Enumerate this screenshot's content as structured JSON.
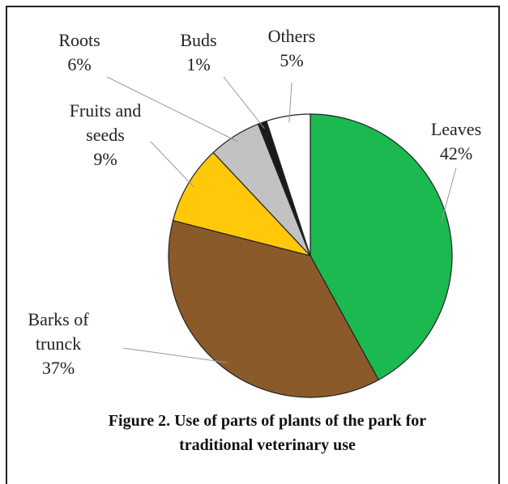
{
  "chart_data": {
    "type": "pie",
    "categories": [
      "Leaves",
      "Barks of trunck",
      "Fruits and seeds",
      "Roots",
      "Buds",
      "Others"
    ],
    "values": [
      42,
      37,
      9,
      6,
      1,
      5
    ],
    "value_labels": [
      "42%",
      "37%",
      "9%",
      "6%",
      "1%",
      "5%"
    ],
    "colors": [
      "#1bb94f",
      "#8b5a2b",
      "#ffc90a",
      "#c2c2c2",
      "#1a1a1a",
      "#ffffff"
    ],
    "caption": "Figure 2. Use of parts of plants of the park for traditional veterinary use"
  }
}
